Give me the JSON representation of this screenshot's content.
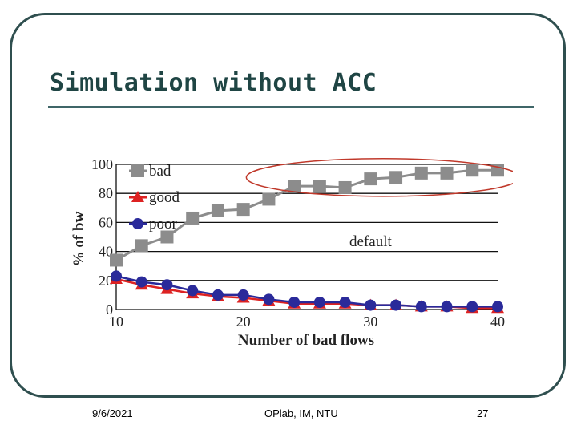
{
  "slide": {
    "title": "Simulation without ACC",
    "footer": {
      "date": "9/6/2021",
      "center": "OPlab, IM, NTU",
      "page": "27"
    }
  },
  "colors": {
    "frame": "#2f4f4f",
    "title": "#1f4544",
    "bad": "#8c8c8c",
    "good": "#dd2222",
    "poor": "#2a2a9a",
    "ellipse": "#c0392b"
  },
  "chart_data": {
    "type": "line",
    "xlabel": "Number of bad flows",
    "ylabel": "% of bw",
    "xlim": [
      10,
      40
    ],
    "ylim": [
      0,
      100
    ],
    "x_ticks": [
      "10",
      "20",
      "30",
      "40"
    ],
    "y_ticks": [
      "0",
      "20",
      "40",
      "60",
      "80",
      "100"
    ],
    "annotation": "default",
    "grid": "horizontal",
    "legend_position": "top-left",
    "x": [
      10,
      12,
      14,
      16,
      18,
      20,
      22,
      24,
      26,
      28,
      30,
      32,
      34,
      36,
      38,
      40
    ],
    "series": [
      {
        "name": "bad",
        "marker": "square",
        "color": "#8c8c8c",
        "values": [
          34,
          44,
          50,
          63,
          68,
          69,
          76,
          85,
          85,
          84,
          90,
          91,
          94,
          94,
          96,
          96
        ]
      },
      {
        "name": "good",
        "marker": "triangle",
        "color": "#dd2222",
        "values": [
          21,
          17,
          14,
          11,
          9,
          8,
          6,
          4,
          4,
          4,
          3,
          3,
          2,
          2,
          1,
          1
        ]
      },
      {
        "name": "poor",
        "marker": "circle",
        "color": "#2a2a9a",
        "values": [
          23,
          19,
          17,
          13,
          10,
          10,
          7,
          5,
          5,
          5,
          3,
          3,
          2,
          2,
          2,
          2
        ]
      }
    ],
    "highlight_ellipse": {
      "x_range": [
        22,
        40
      ],
      "y_range": [
        78,
        104
      ]
    }
  }
}
